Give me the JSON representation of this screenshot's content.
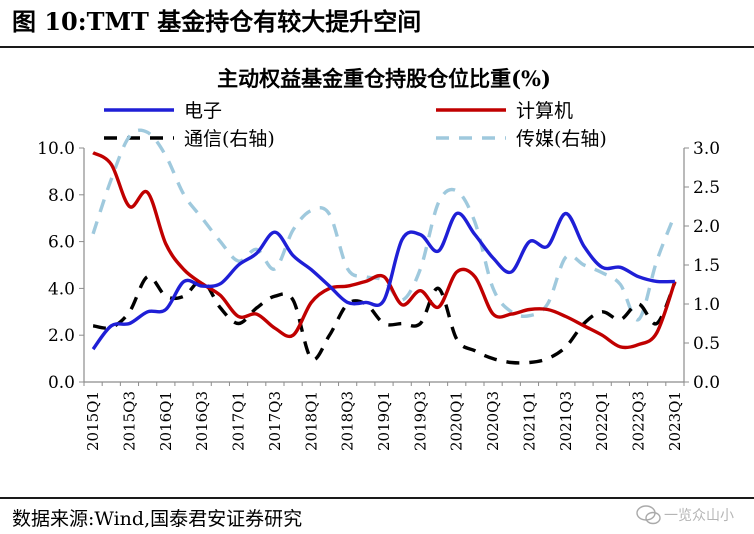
{
  "figure": {
    "title": "图 10:TMT 基金持仓有较大提升空间",
    "source": "数据来源:Wind,国泰君安证券研究",
    "watermark": "一览众山小"
  },
  "chart_data": {
    "type": "line",
    "title": "主动权益基金重仓持股仓位比重(%)",
    "x_categories": [
      "2015Q1",
      "2015Q2",
      "2015Q3",
      "2015Q4",
      "2016Q1",
      "2016Q2",
      "2016Q3",
      "2016Q4",
      "2017Q1",
      "2017Q2",
      "2017Q3",
      "2017Q4",
      "2018Q1",
      "2018Q2",
      "2018Q3",
      "2018Q4",
      "2019Q1",
      "2019Q2",
      "2019Q3",
      "2019Q4",
      "2020Q1",
      "2020Q2",
      "2020Q3",
      "2020Q4",
      "2021Q1",
      "2021Q2",
      "2021Q3",
      "2021Q4",
      "2022Q1",
      "2022Q2",
      "2022Q3",
      "2022Q4",
      "2023Q1"
    ],
    "x_tick_labels": [
      "2015Q1",
      "2015Q3",
      "2016Q1",
      "2016Q3",
      "2017Q1",
      "2017Q3",
      "2018Q1",
      "2018Q3",
      "2019Q1",
      "2019Q3",
      "2020Q1",
      "2020Q3",
      "2021Q1",
      "2021Q3",
      "2022Q1",
      "2022Q3",
      "2023Q1"
    ],
    "y_left": {
      "min": 0,
      "max": 10,
      "ticks": [
        "0.0",
        "2.0",
        "4.0",
        "6.0",
        "8.0",
        "10.0"
      ]
    },
    "y_right": {
      "min": 0,
      "max": 3,
      "ticks": [
        "0.0",
        "0.5",
        "1.0",
        "1.5",
        "2.0",
        "2.5",
        "3.0"
      ]
    },
    "grid": false,
    "legend_position": "top",
    "series": [
      {
        "name": "电子",
        "axis": "left",
        "color": "#1f1fd6",
        "style": "solid",
        "values": [
          1.4,
          2.4,
          2.5,
          3.0,
          3.1,
          4.3,
          4.1,
          4.2,
          5.0,
          5.5,
          6.4,
          5.4,
          4.8,
          4.1,
          3.4,
          3.4,
          3.5,
          6.1,
          6.3,
          5.6,
          7.2,
          6.3,
          5.3,
          4.7,
          6.0,
          5.8,
          7.2,
          5.8,
          4.9,
          4.9,
          4.5,
          4.3,
          4.3
        ]
      },
      {
        "name": "计算机",
        "axis": "left",
        "color": "#c00000",
        "style": "solid",
        "values": [
          9.8,
          9.3,
          7.5,
          8.1,
          5.9,
          4.8,
          4.2,
          3.7,
          2.8,
          2.9,
          2.3,
          2.0,
          3.4,
          4.0,
          4.1,
          4.3,
          4.5,
          3.3,
          3.9,
          3.2,
          4.7,
          4.5,
          2.9,
          2.9,
          3.1,
          3.1,
          2.8,
          2.4,
          2.0,
          1.5,
          1.6,
          2.1,
          4.3
        ]
      },
      {
        "name": "通信(右轴)",
        "axis": "right",
        "color": "#000000",
        "style": "dashed",
        "values": [
          0.72,
          0.7,
          0.9,
          1.35,
          1.1,
          1.1,
          1.3,
          0.95,
          0.75,
          0.95,
          1.1,
          1.05,
          0.3,
          0.6,
          1.0,
          1.0,
          0.75,
          0.75,
          0.75,
          1.2,
          0.55,
          0.4,
          0.3,
          0.25,
          0.25,
          0.3,
          0.45,
          0.75,
          0.9,
          0.8,
          1.0,
          0.75,
          1.28
        ]
      },
      {
        "name": "传媒(右轴)",
        "axis": "right",
        "color": "#9fc9dd",
        "style": "dashed",
        "values": [
          1.9,
          2.6,
          3.15,
          3.2,
          2.9,
          2.4,
          2.1,
          1.8,
          1.55,
          1.7,
          1.45,
          1.95,
          2.2,
          2.15,
          1.45,
          1.35,
          1.3,
          1.05,
          1.45,
          2.3,
          2.45,
          2.05,
          1.2,
          0.9,
          0.85,
          1.0,
          1.6,
          1.5,
          1.4,
          1.25,
          0.8,
          1.55,
          2.15
        ]
      }
    ]
  }
}
